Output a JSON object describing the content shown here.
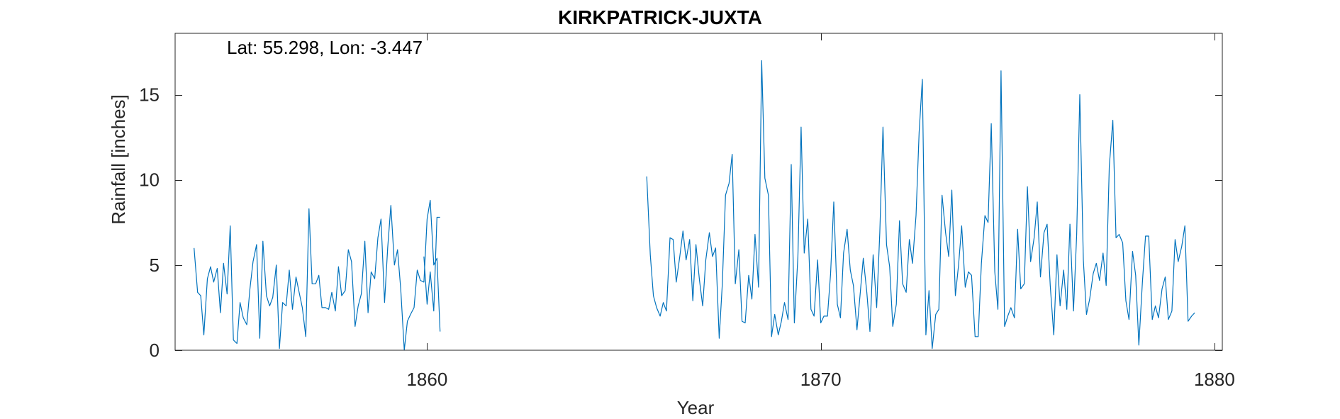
{
  "chart_data": {
    "type": "line",
    "title": "KIRKPATRICK-JUXTA",
    "xlabel": "Year",
    "ylabel": "Rainfall [inches]",
    "annotation": "Lat: 55.298, Lon: -3.447",
    "xlim": [
      1853.6,
      1880.2
    ],
    "ylim": [
      0,
      18.6
    ],
    "xticks": [
      1860,
      1870,
      1880
    ],
    "yticks": [
      0,
      5,
      10,
      15
    ],
    "grid": false,
    "legend": "none",
    "line_color": "#0072BD",
    "series": [
      {
        "segments": [
          {
            "x": [
              1854.08,
              1854.17,
              1854.25,
              1854.33,
              1854.42,
              1854.5,
              1854.58,
              1854.67,
              1854.75,
              1854.83,
              1854.92,
              1855.0,
              1855.08,
              1855.17,
              1855.25,
              1855.33,
              1855.42,
              1855.5,
              1855.58,
              1855.67,
              1855.75,
              1855.83,
              1855.92,
              1856.0,
              1856.08,
              1856.17,
              1856.25,
              1856.33,
              1856.42,
              1856.5,
              1856.58,
              1856.67,
              1856.75,
              1856.83,
              1856.92,
              1857.0,
              1857.08,
              1857.17,
              1857.25,
              1857.33,
              1857.42,
              1857.5,
              1857.58,
              1857.67,
              1857.75,
              1857.83,
              1857.92,
              1858.0,
              1858.08,
              1858.17,
              1858.25,
              1858.33,
              1858.42,
              1858.5,
              1858.58,
              1858.67,
              1858.75,
              1858.83,
              1858.92,
              1859.0,
              1859.08,
              1859.17,
              1859.25,
              1859.33,
              1859.42,
              1859.5,
              1859.58,
              1859.67,
              1859.75,
              1859.83,
              1859.92,
              1860.0,
              1860.08,
              1860.17,
              1860.25,
              1860.33
            ],
            "y": [
              6.0,
              3.4,
              3.2,
              0.9,
              4.2,
              4.9,
              4.0,
              4.8,
              2.2,
              5.1,
              3.3,
              7.3,
              0.6,
              0.4,
              2.8,
              1.9,
              1.5,
              3.6,
              5.2,
              6.2,
              0.7,
              6.4,
              3.2,
              2.6,
              3.1,
              5.0,
              0.1,
              2.8,
              2.6,
              4.7,
              2.4,
              4.3,
              3.4,
              2.5,
              0.8,
              8.3,
              3.9,
              3.9,
              4.4,
              2.5,
              2.5,
              2.4,
              3.4,
              2.3,
              4.9,
              3.2,
              3.5,
              5.9,
              5.2,
              1.4,
              2.6,
              3.3,
              6.4,
              2.2,
              4.6,
              4.2,
              6.6,
              7.7,
              2.8,
              6.0,
              8.5,
              5.0,
              5.9,
              3.6,
              0.0,
              1.7,
              2.1,
              2.5,
              4.7,
              4.1,
              4.0,
              7.7,
              8.8,
              5.0,
              5.4,
              1.1
            ]
          },
          {
            "x": [
              1859.92,
              1860.0,
              1860.08,
              1860.17,
              1860.25,
              1860.33
            ],
            "y": [
              5.5,
              2.7,
              4.6,
              2.3,
              7.8,
              7.8
            ]
          },
          {
            "x": [
              1865.58,
              1865.67,
              1865.75,
              1865.83,
              1865.92,
              1866.0,
              1866.08,
              1866.17,
              1866.25,
              1866.33,
              1866.42,
              1866.5,
              1866.58,
              1866.67,
              1866.75,
              1866.83,
              1866.92,
              1867.0,
              1867.08,
              1867.17,
              1867.25,
              1867.33,
              1867.42,
              1867.5,
              1867.58,
              1867.67,
              1867.75,
              1867.83,
              1867.92,
              1868.0,
              1868.08,
              1868.17,
              1868.25,
              1868.33,
              1868.42,
              1868.5,
              1868.58,
              1868.67,
              1868.75,
              1868.83,
              1868.92,
              1869.0,
              1869.08,
              1869.17,
              1869.25,
              1869.33,
              1869.42,
              1869.5,
              1869.58,
              1869.67,
              1869.75,
              1869.83,
              1869.92,
              1870.0,
              1870.08,
              1870.17,
              1870.25,
              1870.33,
              1870.42,
              1870.5,
              1870.58,
              1870.67,
              1870.75,
              1870.83,
              1870.92,
              1871.0,
              1871.08,
              1871.17,
              1871.25,
              1871.33,
              1871.42,
              1871.5,
              1871.58,
              1871.67,
              1871.75,
              1871.83,
              1871.92,
              1872.0,
              1872.08,
              1872.17,
              1872.25,
              1872.33,
              1872.42,
              1872.5,
              1872.58,
              1872.67,
              1872.75,
              1872.83,
              1872.92,
              1873.0,
              1873.08,
              1873.17,
              1873.25,
              1873.33,
              1873.42,
              1873.5,
              1873.58,
              1873.67,
              1873.75,
              1873.83,
              1873.92,
              1874.0,
              1874.08,
              1874.17,
              1874.25,
              1874.33,
              1874.42,
              1874.5,
              1874.58,
              1874.67,
              1874.75,
              1874.83,
              1874.92,
              1875.0,
              1875.08,
              1875.17,
              1875.25,
              1875.33,
              1875.42,
              1875.5,
              1875.58,
              1875.67,
              1875.75,
              1875.83,
              1875.92,
              1876.0,
              1876.08,
              1876.17,
              1876.25,
              1876.33,
              1876.42,
              1876.5,
              1876.58,
              1876.67,
              1876.75,
              1876.83,
              1876.92,
              1877.0,
              1877.08,
              1877.17,
              1877.25,
              1877.33,
              1877.42,
              1877.5,
              1877.58,
              1877.67,
              1877.75,
              1877.83,
              1877.92,
              1878.0,
              1878.08,
              1878.17,
              1878.25,
              1878.33,
              1878.42,
              1878.5,
              1878.58,
              1878.67,
              1878.75,
              1878.83,
              1878.92,
              1879.0,
              1879.08,
              1879.17,
              1879.25,
              1879.33,
              1879.42,
              1879.5
            ],
            "y": [
              10.2,
              5.6,
              3.2,
              2.5,
              2.0,
              2.8,
              2.3,
              6.6,
              6.5,
              4.0,
              5.5,
              7.0,
              5.3,
              6.5,
              2.9,
              6.2,
              4.1,
              2.6,
              5.3,
              6.9,
              5.5,
              6.0,
              0.7,
              3.9,
              9.1,
              9.8,
              11.5,
              3.9,
              5.9,
              1.7,
              1.6,
              4.4,
              3.0,
              6.8,
              3.7,
              17.0,
              10.1,
              9.1,
              0.8,
              2.1,
              0.9,
              1.7,
              2.8,
              1.8,
              10.9,
              1.6,
              5.5,
              13.1,
              5.7,
              7.7,
              2.4,
              2.0,
              5.3,
              1.6,
              2.0,
              2.0,
              4.5,
              8.7,
              2.7,
              1.9,
              5.7,
              7.1,
              4.7,
              3.8,
              1.2,
              3.3,
              5.4,
              3.4,
              1.1,
              5.6,
              2.5,
              6.9,
              13.1,
              6.2,
              4.9,
              1.4,
              2.7,
              7.6,
              3.9,
              3.4,
              6.5,
              5.1,
              7.9,
              12.8,
              15.9,
              0.9,
              3.5,
              0.1,
              2.1,
              2.4,
              9.1,
              6.9,
              5.5,
              9.4,
              3.2,
              5.0,
              7.3,
              3.7,
              4.6,
              4.4,
              0.8,
              0.8,
              5.1,
              7.9,
              7.5,
              13.3,
              4.6,
              2.4,
              16.4,
              1.4,
              2.0,
              2.5,
              1.9,
              7.1,
              3.6,
              3.9,
              9.6,
              5.2,
              6.6,
              8.7,
              4.3,
              6.9,
              7.4,
              3.8,
              0.9,
              5.6,
              2.6,
              4.7,
              2.4,
              7.4,
              2.3,
              6.8,
              15.0,
              5.3,
              2.1,
              3.0,
              4.5,
              5.1,
              4.1,
              5.7,
              3.8,
              10.8,
              13.5,
              6.6,
              6.8,
              6.3,
              2.9,
              1.8,
              5.8,
              4.4,
              0.3,
              4.0,
              6.7,
              6.7,
              1.8,
              2.6,
              1.9,
              3.6,
              4.3,
              1.8,
              2.3,
              6.5,
              5.2,
              6.1,
              7.3,
              1.7,
              2.0,
              2.2
            ]
          }
        ]
      }
    ]
  }
}
